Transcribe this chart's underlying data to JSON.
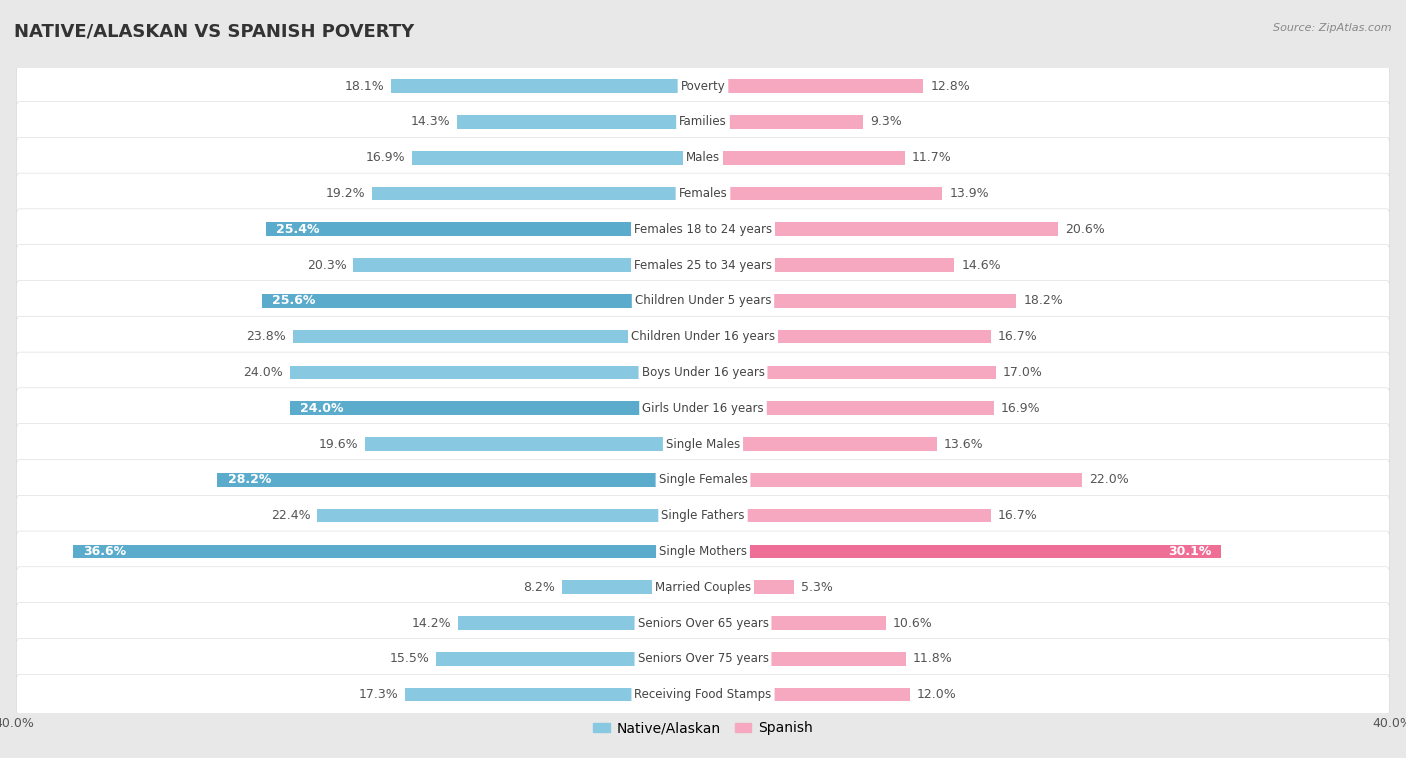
{
  "title": "NATIVE/ALASKAN VS SPANISH POVERTY",
  "source": "Source: ZipAtlas.com",
  "categories": [
    "Poverty",
    "Families",
    "Males",
    "Females",
    "Females 18 to 24 years",
    "Females 25 to 34 years",
    "Children Under 5 years",
    "Children Under 16 years",
    "Boys Under 16 years",
    "Girls Under 16 years",
    "Single Males",
    "Single Females",
    "Single Fathers",
    "Single Mothers",
    "Married Couples",
    "Seniors Over 65 years",
    "Seniors Over 75 years",
    "Receiving Food Stamps"
  ],
  "native_values": [
    18.1,
    14.3,
    16.9,
    19.2,
    25.4,
    20.3,
    25.6,
    23.8,
    24.0,
    24.0,
    19.6,
    28.2,
    22.4,
    36.6,
    8.2,
    14.2,
    15.5,
    17.3
  ],
  "spanish_values": [
    12.8,
    9.3,
    11.7,
    13.9,
    20.6,
    14.6,
    18.2,
    16.7,
    17.0,
    16.9,
    13.6,
    22.0,
    16.7,
    30.1,
    5.3,
    10.6,
    11.8,
    12.0
  ],
  "native_color": "#88c8e0",
  "spanish_color": "#f5a8bf",
  "native_highlight_color": "#5aabcc",
  "spanish_highlight_color": "#ee6e96",
  "bg_color": "#e8e8e8",
  "row_color": "#f5f5f5",
  "row_alt_color": "#e8e8e8",
  "xlim": 40.0,
  "label_fontsize": 9.0,
  "title_fontsize": 13,
  "category_fontsize": 8.5,
  "native_highlight_indices": [
    4,
    6,
    9,
    11,
    13
  ],
  "spanish_highlight_indices": [
    13
  ]
}
